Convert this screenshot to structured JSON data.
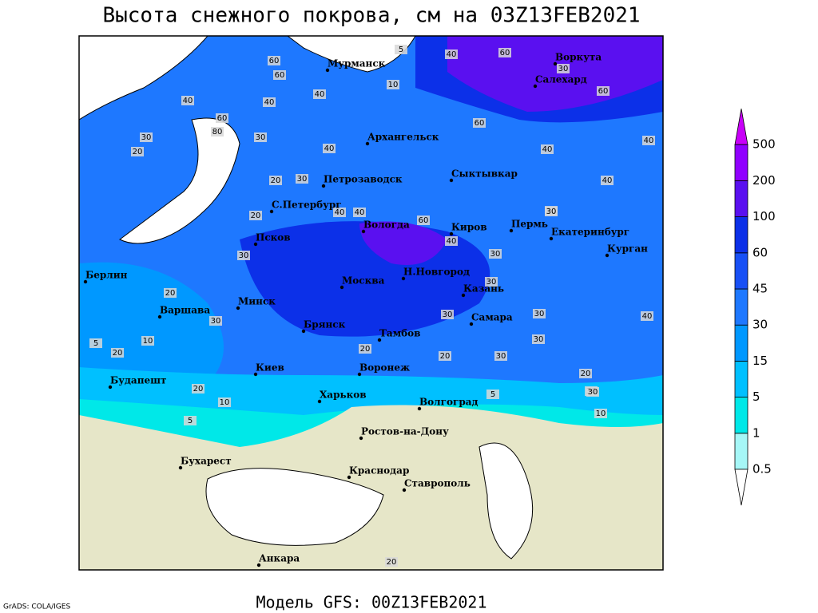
{
  "title": "Высота снежного покрова, см на 03Z13FEB2021",
  "footer": "Модель GFS: 00Z13FEB2021",
  "credit": "GrADS: COLA/IGES",
  "cities": [
    "Мурманск",
    "Воркута",
    "Салехард",
    "Архангельск",
    "Петрозаводск",
    "Сыктывкар",
    "С.Петербург",
    "Вологда",
    "Киров",
    "Пермь",
    "Екатеринбург",
    "Курган",
    "Псков",
    "Берлин",
    "Н.Новгород",
    "Москва",
    "Казань",
    "Минск",
    "Варшава",
    "Самара",
    "Брянск",
    "Тамбов",
    "Воронеж",
    "Киев",
    "Будапешт",
    "Харьков",
    "Волгоград",
    "Ростов-на-Дону",
    "Бухарест",
    "Краснодар",
    "Ставрополь",
    "Анкара"
  ],
  "contour_labels": [
    40,
    60,
    5,
    10,
    60,
    80,
    30,
    60,
    40,
    40,
    60,
    40,
    60,
    30,
    20,
    60,
    30,
    40,
    20,
    30,
    20,
    40,
    40,
    60,
    40,
    30,
    40,
    40,
    30,
    40,
    30,
    30,
    30,
    30,
    20,
    30,
    30,
    20,
    30,
    30,
    30,
    40,
    10,
    5,
    20,
    20,
    10,
    20,
    20,
    30,
    10,
    5,
    5,
    20
  ],
  "legend": {
    "levels": [
      0.5,
      1,
      5,
      15,
      30,
      45,
      60,
      100,
      200,
      500
    ],
    "colors": [
      "#ffffff",
      "#a6f7f7",
      "#00e8e8",
      "#00c0ff",
      "#0098ff",
      "#1e78ff",
      "#1850f5",
      "#0c30e8",
      "#5a10f0",
      "#9000ff",
      "#c800f8"
    ]
  }
}
